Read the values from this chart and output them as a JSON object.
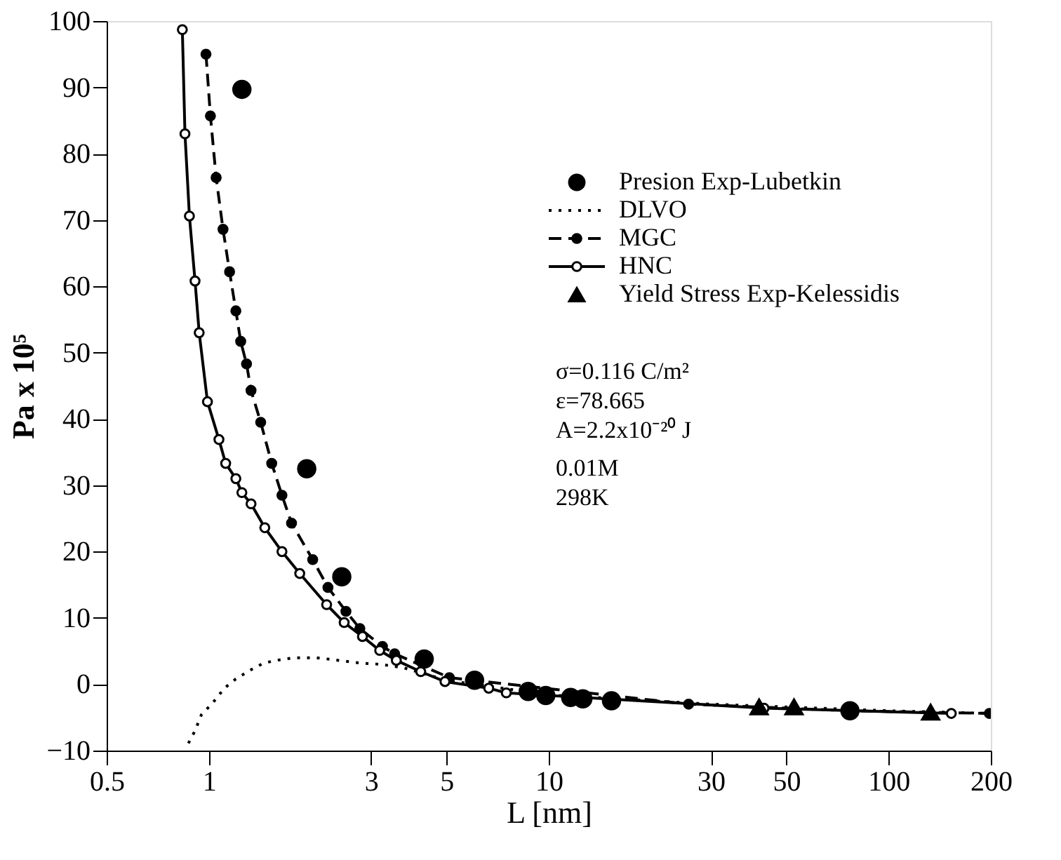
{
  "chart_data": {
    "type": "line",
    "xlabel": "L [nm]",
    "ylabel": "Pa x 10⁵",
    "log": "x",
    "xlim": [
      0.5,
      200
    ],
    "xticks": [
      0.5,
      1,
      3,
      5,
      10,
      30,
      50,
      100,
      200
    ],
    "ylim": [
      -10,
      100
    ],
    "yticks": [
      -10,
      0,
      10,
      20,
      30,
      40,
      50,
      60,
      70,
      80,
      90,
      100
    ],
    "grid": false,
    "legend": "top right",
    "annotations": [
      "σ=0.116 C/m²",
      "ε=78.665",
      "A=2.2x10⁻²⁰ J",
      "0.01M",
      "298K"
    ],
    "series": [
      {
        "name": "Presion Exp-Lubetkin",
        "type": "scatter",
        "marker": "circle",
        "color": "#000000",
        "x": [
          1.25,
          1.94,
          2.46,
          4.3,
          6.05,
          8.7,
          9.8,
          11.6,
          12.6,
          15.3,
          77
        ],
        "values": [
          89.7,
          32.5,
          16.2,
          3.8,
          0.6,
          -1.1,
          -1.7,
          -2.0,
          -2.2,
          -2.5,
          -4.0
        ]
      },
      {
        "name": "DLVO",
        "marker": "none",
        "line_style": "dotted",
        "color": "#000000",
        "x": [
          0.87,
          0.91,
          0.95,
          1.03,
          1.11,
          1.2,
          1.32,
          1.45,
          1.58,
          1.78,
          2.07,
          2.41,
          2.78,
          3.2,
          3.73,
          5,
          10,
          30,
          100,
          200
        ],
        "values": [
          -8.9,
          -7,
          -4.6,
          -2.7,
          -0.6,
          0.8,
          2.1,
          3.2,
          3.6,
          4,
          4,
          3.6,
          3.2,
          3,
          2.5,
          0.6,
          -1.6,
          -3.0,
          -4.0,
          -4.4
        ]
      },
      {
        "name": "MGC",
        "marker": "circle",
        "line_style": "dashed",
        "color": "#000000",
        "x": [
          0.98,
          1.01,
          1.05,
          1.1,
          1.15,
          1.2,
          1.24,
          1.29,
          1.33,
          1.42,
          1.53,
          1.64,
          1.75,
          2.02,
          2.24,
          2.53,
          2.78,
          3.24,
          3.52,
          5.1,
          25.8,
          77,
          198
        ],
        "values": [
          95,
          85.7,
          76.4,
          68.6,
          62.2,
          56.3,
          51.7,
          48.3,
          44.3,
          39.5,
          33.3,
          28.5,
          24.3,
          18.8,
          14.6,
          11,
          8.4,
          5.7,
          4.6,
          1,
          -3,
          -4.0,
          -4.4
        ]
      },
      {
        "name": "HNC",
        "marker": "circle",
        "line_style": "solid",
        "color": "#000000",
        "x": [
          0.835,
          0.85,
          0.876,
          0.91,
          0.936,
          0.99,
          1.07,
          1.12,
          1.2,
          1.25,
          1.33,
          1.46,
          1.64,
          1.85,
          2.22,
          2.5,
          2.83,
          3.18,
          3.56,
          4.2,
          4.95,
          6.66,
          7.5,
          43,
          153
        ],
        "values": [
          98.7,
          83,
          70.6,
          60.8,
          53,
          42.6,
          36.9,
          33.3,
          31,
          28.9,
          27.2,
          23.6,
          20,
          16.7,
          12,
          9.3,
          7.2,
          5.1,
          3.6,
          1.9,
          0.4,
          -0.6,
          -1.3,
          -3.6,
          -4.4
        ]
      },
      {
        "name": "Yield Stress Exp-Kelessidis",
        "type": "scatter",
        "marker": "triangle",
        "color": "#000000",
        "x": [
          41.6,
          52.7,
          133
        ],
        "values": [
          -3.4,
          -3.4,
          -4.2
        ]
      }
    ]
  }
}
